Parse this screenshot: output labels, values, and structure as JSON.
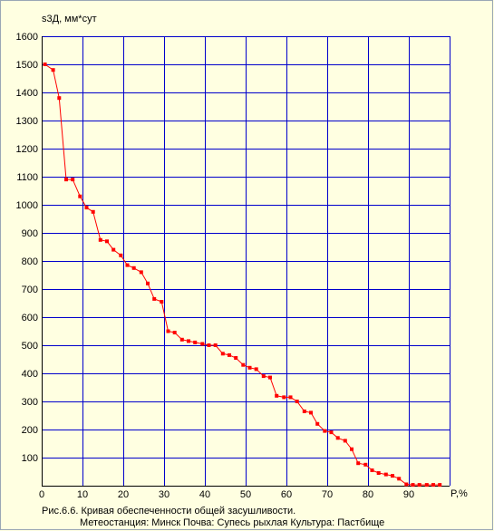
{
  "chart_data": {
    "type": "line",
    "ylabel": "s3Д, мм*сут",
    "xlabel": "P,%",
    "xlim": [
      0,
      100
    ],
    "ylim": [
      0,
      1600
    ],
    "xticks": [
      0,
      10,
      20,
      30,
      40,
      50,
      60,
      70,
      80,
      90
    ],
    "yticks": [
      100,
      200,
      300,
      400,
      500,
      600,
      700,
      800,
      900,
      1000,
      1100,
      1200,
      1300,
      1400,
      1500,
      1600
    ],
    "grid": true,
    "colors": {
      "line": "#ff0000",
      "grid": "#0000cc",
      "background": "#ffffe1"
    },
    "series": [
      {
        "x": [
          0.8,
          2.8,
          4.3,
          6.0,
          7.6,
          9.4,
          11.0,
          12.6,
          14.4,
          16.0,
          17.6,
          19.4,
          21.0,
          22.6,
          24.4,
          26.0,
          27.6,
          29.4,
          31.0,
          32.6,
          34.4,
          36.0,
          37.6,
          39.4,
          41.0,
          42.6,
          44.4,
          46.0,
          47.6,
          49.4,
          51.0,
          52.6,
          54.4,
          56.0,
          57.6,
          59.4,
          61.0,
          62.6,
          64.4,
          66.0,
          67.6,
          69.4,
          71.0,
          72.6,
          74.4,
          76.0,
          77.6,
          79.4,
          81.0,
          82.6,
          84.4,
          86.0,
          87.6,
          89.4,
          91.0,
          92.6,
          94.4,
          96.0,
          97.6
        ],
        "values": [
          1500,
          1480,
          1380,
          1090,
          1090,
          1030,
          990,
          975,
          875,
          870,
          840,
          820,
          785,
          775,
          760,
          720,
          665,
          655,
          550,
          545,
          520,
          515,
          510,
          505,
          500,
          500,
          470,
          465,
          455,
          430,
          420,
          415,
          390,
          385,
          320,
          315,
          315,
          300,
          265,
          260,
          220,
          195,
          190,
          170,
          160,
          130,
          80,
          75,
          55,
          45,
          40,
          35,
          25,
          5,
          3,
          3,
          3,
          3,
          3
        ]
      }
    ]
  },
  "caption": {
    "line1": "Рис.6.6. Кривая обеспеченности общей засушливости.",
    "line2": "Метеостанция: Минск    Почва: Супесь рыхлая   Культура: Пастбище"
  }
}
